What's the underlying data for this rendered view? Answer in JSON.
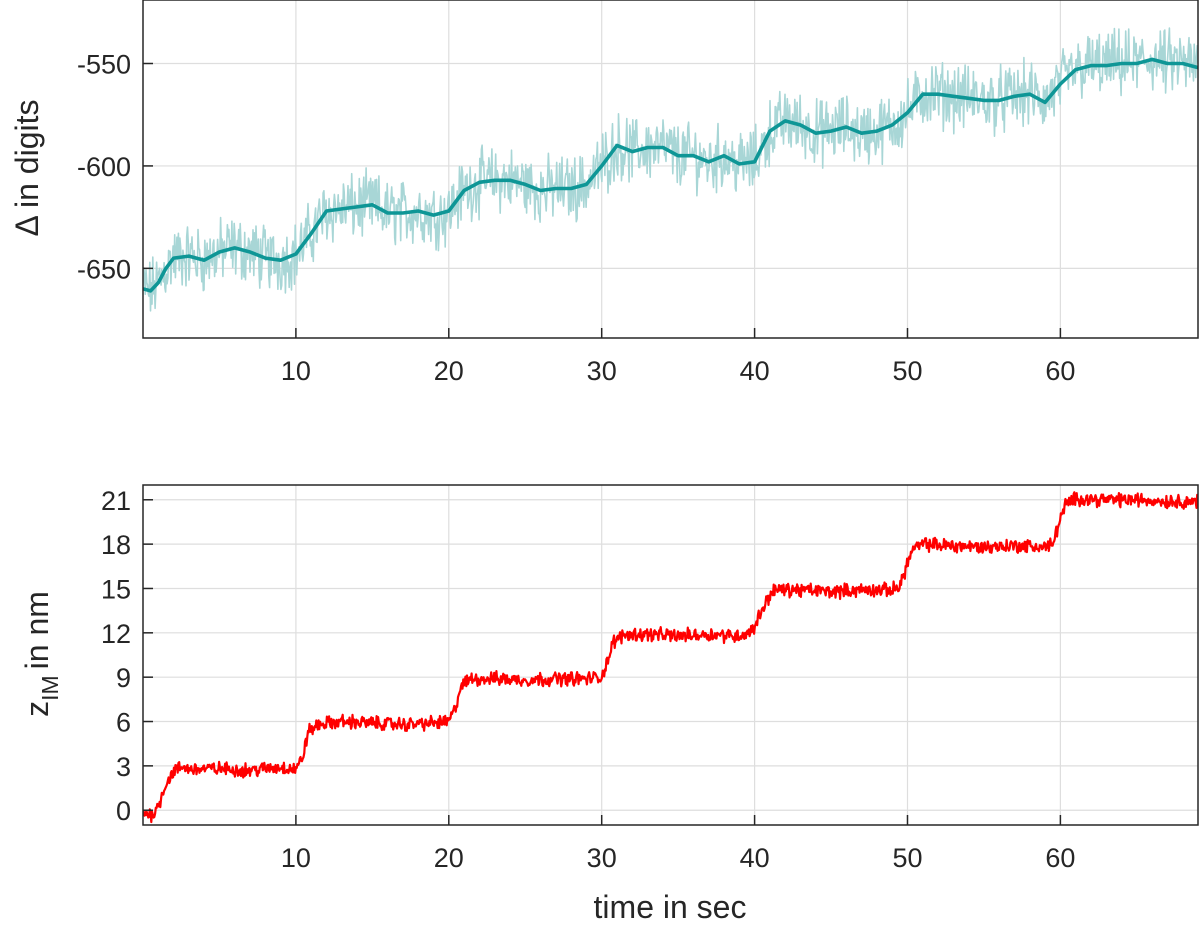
{
  "colors": {
    "noise": "#a8d6d6",
    "smoothed": "#0e9696",
    "step": "#ff0000",
    "grid": "#dedede",
    "axis": "#262626"
  },
  "chart_data": [
    {
      "type": "line",
      "title": "",
      "xlabel": "",
      "ylabel": "Δ in digits",
      "xlim": [
        0,
        69
      ],
      "ylim": [
        -684,
        -519
      ],
      "xticks": [
        10,
        20,
        30,
        40,
        50,
        60
      ],
      "yticks": [
        -650,
        -600,
        -550
      ],
      "grid": true,
      "series": [
        {
          "role": "raw",
          "color": "#a8d6d6",
          "noise_amplitude": 12,
          "x": [
            0,
            0.5,
            1,
            1.5,
            2,
            3,
            4,
            5,
            6,
            7,
            8,
            9,
            10,
            11,
            12,
            13,
            14,
            15,
            16,
            17,
            18,
            19,
            20,
            21,
            22,
            23,
            24,
            25,
            26,
            27,
            28,
            29,
            30,
            31,
            32,
            33,
            34,
            35,
            36,
            37,
            38,
            39,
            40,
            41,
            42,
            43,
            44,
            45,
            46,
            47,
            48,
            49,
            50,
            51,
            52,
            53,
            54,
            55,
            56,
            57,
            58,
            59,
            60,
            61,
            62,
            63,
            64,
            65,
            66,
            67,
            68,
            69
          ],
          "values": [
            -660,
            -661,
            -657,
            -650,
            -645,
            -644,
            -646,
            -642,
            -640,
            -642,
            -645,
            -646,
            -643,
            -633,
            -622,
            -621,
            -620,
            -619,
            -623,
            -623,
            -622,
            -624,
            -622,
            -612,
            -608,
            -607,
            -607,
            -609,
            -612,
            -611,
            -611,
            -609,
            -600,
            -590,
            -593,
            -591,
            -591,
            -595,
            -595,
            -598,
            -595,
            -599,
            -598,
            -583,
            -578,
            -580,
            -584,
            -583,
            -581,
            -584,
            -583,
            -580,
            -574,
            -565,
            -565,
            -566,
            -567,
            -568,
            -568,
            -566,
            -565,
            -569,
            -560,
            -553,
            -551,
            -551,
            -550,
            -550,
            -548,
            -550,
            -550,
            -552
          ]
        },
        {
          "role": "smoothed",
          "color": "#0e9696",
          "x": [
            0,
            0.5,
            1,
            1.5,
            2,
            3,
            4,
            5,
            6,
            7,
            8,
            9,
            10,
            11,
            12,
            13,
            14,
            15,
            16,
            17,
            18,
            19,
            20,
            21,
            22,
            23,
            24,
            25,
            26,
            27,
            28,
            29,
            30,
            31,
            32,
            33,
            34,
            35,
            36,
            37,
            38,
            39,
            40,
            41,
            42,
            43,
            44,
            45,
            46,
            47,
            48,
            49,
            50,
            51,
            52,
            53,
            54,
            55,
            56,
            57,
            58,
            59,
            60,
            61,
            62,
            63,
            64,
            65,
            66,
            67,
            68,
            69
          ],
          "values": [
            -660,
            -661,
            -657,
            -650,
            -645,
            -644,
            -646,
            -642,
            -640,
            -642,
            -645,
            -646,
            -643,
            -633,
            -622,
            -621,
            -620,
            -619,
            -623,
            -623,
            -622,
            -624,
            -622,
            -612,
            -608,
            -607,
            -607,
            -609,
            -612,
            -611,
            -611,
            -609,
            -600,
            -590,
            -593,
            -591,
            -591,
            -595,
            -595,
            -598,
            -595,
            -599,
            -598,
            -583,
            -578,
            -580,
            -584,
            -583,
            -581,
            -584,
            -583,
            -580,
            -574,
            -565,
            -565,
            -566,
            -567,
            -568,
            -568,
            -566,
            -565,
            -569,
            -560,
            -553,
            -551,
            -551,
            -550,
            -550,
            -548,
            -550,
            -550,
            -552
          ]
        }
      ]
    },
    {
      "type": "line",
      "title": "",
      "xlabel": "time in sec",
      "ylabel": "z",
      "ylabel_subscript": "IM",
      "ylabel_suffix": "in nm",
      "xlim": [
        0,
        69
      ],
      "ylim": [
        -1,
        22
      ],
      "xticks": [
        10,
        20,
        30,
        40,
        50,
        60
      ],
      "yticks": [
        0,
        3,
        6,
        9,
        12,
        15,
        18,
        21
      ],
      "grid": true,
      "series": [
        {
          "role": "position",
          "color": "#ff0000",
          "noise_amplitude": 0.35,
          "x": [
            0,
            0.6,
            1,
            1.5,
            2,
            2.5,
            3,
            5,
            7,
            9,
            10,
            10.4,
            10.8,
            11.5,
            13,
            15,
            17,
            19,
            20,
            20.4,
            20.8,
            21.5,
            23,
            25,
            27,
            29,
            30,
            30.4,
            30.8,
            31.5,
            33,
            35,
            37,
            39,
            39.6,
            40,
            40.5,
            41.2,
            43,
            45,
            47,
            49,
            49.5,
            49.9,
            50.3,
            51,
            53,
            55,
            57,
            59,
            59.5,
            59.9,
            60.3,
            61,
            63,
            65,
            67,
            69
          ],
          "values": [
            -0.2,
            -0.3,
            0.3,
            1.8,
            2.6,
            2.9,
            2.8,
            2.8,
            2.7,
            2.9,
            2.8,
            3.4,
            5.3,
            5.8,
            6.0,
            5.9,
            5.8,
            5.9,
            6.0,
            6.8,
            8.4,
            8.9,
            8.9,
            8.8,
            8.9,
            8.9,
            9.0,
            10.2,
            11.4,
            11.9,
            11.9,
            11.8,
            11.9,
            11.8,
            12.0,
            12.4,
            13.6,
            14.9,
            14.9,
            14.8,
            14.9,
            14.9,
            15.2,
            16.4,
            17.6,
            18.0,
            17.9,
            17.8,
            17.9,
            17.8,
            18.0,
            19.4,
            20.6,
            21.1,
            21.0,
            21.0,
            20.9,
            20.9
          ]
        }
      ]
    }
  ]
}
